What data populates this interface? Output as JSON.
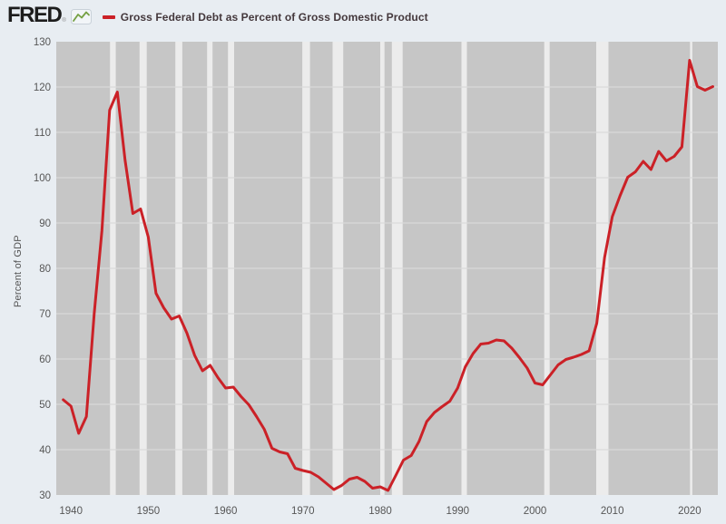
{
  "header": {
    "logo_text": "FRED",
    "registered_mark": "®"
  },
  "chart_data": {
    "type": "line",
    "title": "Gross Federal Debt as Percent of Gross Domestic Product",
    "ylabel": "Percent of GDP",
    "xlabel": "",
    "legend_position": "top-left",
    "grid": "horizontal",
    "line_color": "#cb2127",
    "plot_bg_color": "#c6c6c6",
    "recession_band_color": "#ececec",
    "gridline_color": "#dadada",
    "axis_text_color": "#565656",
    "page_bg_color": "#e8edf2",
    "logo_icon_line_color": "#75a043",
    "ylim": [
      30,
      130
    ],
    "xlim": [
      1938.1,
      2023.65
    ],
    "yticks": [
      30,
      40,
      50,
      60,
      70,
      80,
      90,
      100,
      110,
      120,
      130
    ],
    "xticks": [
      1940,
      1950,
      1960,
      1970,
      1980,
      1990,
      2000,
      2010,
      2020
    ],
    "recession_bands": [
      [
        1945.05,
        1945.8
      ],
      [
        1948.87,
        1949.8
      ],
      [
        1953.5,
        1954.4
      ],
      [
        1957.6,
        1958.3
      ],
      [
        1960.3,
        1961.1
      ],
      [
        1969.92,
        1970.92
      ],
      [
        1973.83,
        1975.2
      ],
      [
        1980.0,
        1980.55
      ],
      [
        1981.5,
        1982.9
      ],
      [
        1990.5,
        1991.2
      ],
      [
        2001.2,
        2001.9
      ],
      [
        2007.92,
        2009.5
      ],
      [
        2020.05,
        2020.35
      ]
    ],
    "x": [
      1939,
      1940,
      1941,
      1942,
      1943,
      1944,
      1945,
      1946,
      1947,
      1948,
      1949,
      1950,
      1951,
      1952,
      1953,
      1954,
      1955,
      1956,
      1957,
      1958,
      1959,
      1960,
      1961,
      1962,
      1963,
      1964,
      1965,
      1966,
      1967,
      1968,
      1969,
      1970,
      1971,
      1972,
      1973,
      1974,
      1975,
      1976,
      1977,
      1978,
      1979,
      1980,
      1981,
      1982,
      1983,
      1984,
      1985,
      1986,
      1987,
      1988,
      1989,
      1990,
      1991,
      1992,
      1993,
      1994,
      1995,
      1996,
      1997,
      1998,
      1999,
      2000,
      2001,
      2002,
      2003,
      2004,
      2005,
      2006,
      2007,
      2008,
      2009,
      2010,
      2011,
      2012,
      2013,
      2014,
      2015,
      2016,
      2017,
      2018,
      2019,
      2020,
      2021,
      2022,
      2023
    ],
    "values": [
      51.0,
      49.6,
      43.6,
      47.3,
      70.0,
      88.3,
      114.9,
      118.9,
      103.9,
      92.1,
      93.1,
      86.9,
      74.5,
      71.3,
      68.8,
      69.5,
      65.7,
      60.8,
      57.4,
      58.6,
      55.9,
      53.6,
      53.8,
      51.7,
      49.9,
      47.3,
      44.5,
      40.3,
      39.5,
      39.1,
      35.9,
      35.4,
      35.0,
      34.0,
      32.6,
      31.2,
      32.1,
      33.5,
      33.9,
      33.0,
      31.5,
      31.8,
      31.0,
      34.3,
      37.7,
      38.7,
      41.8,
      46.2,
      48.2,
      49.5,
      50.7,
      53.6,
      58.3,
      61.2,
      63.3,
      63.5,
      64.2,
      64.0,
      62.4,
      60.3,
      58.0,
      54.7,
      54.3,
      56.5,
      58.7,
      59.9,
      60.4,
      61.0,
      61.8,
      67.9,
      82.4,
      91.4,
      96.0,
      100.1,
      101.3,
      103.6,
      101.8,
      105.8,
      103.7,
      104.7,
      106.8,
      125.9,
      120.1,
      119.3,
      120.1
    ]
  }
}
